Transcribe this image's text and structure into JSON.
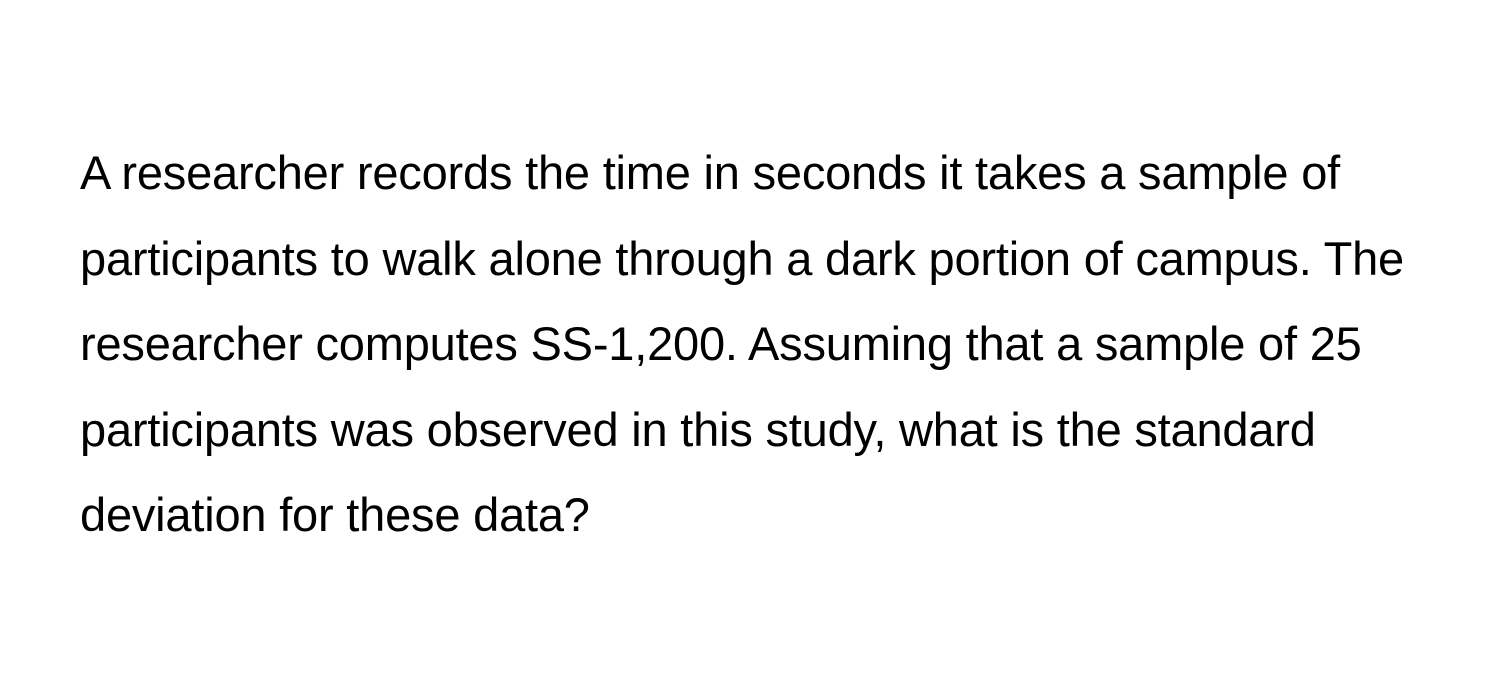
{
  "question": {
    "text": "A researcher records the time in seconds it takes a sample of participants to walk alone through a dark portion of campus. The researcher computes SS-1,200. Assuming that a sample of 25 participants was observed in this study, what is the standard deviation for these data?",
    "font_size": 47,
    "line_height": 1.82,
    "text_color": "#000000",
    "background_color": "#ffffff",
    "font_weight": 400
  }
}
